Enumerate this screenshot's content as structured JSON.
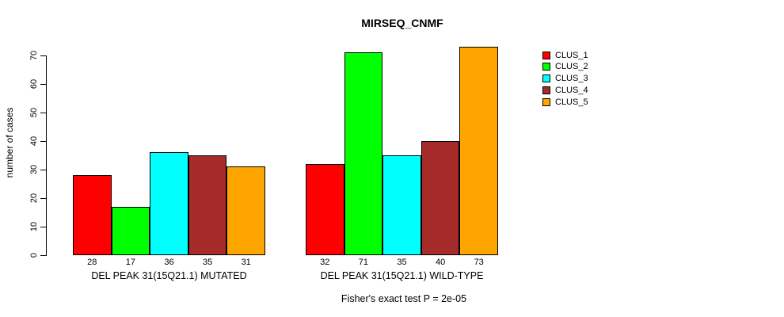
{
  "chart_data": {
    "type": "bar",
    "title": "MIRSEQ_CNMF",
    "ylabel": "number of cases",
    "xlabel": "",
    "ylim": [
      0,
      70
    ],
    "yticks": [
      0,
      10,
      20,
      30,
      40,
      50,
      60,
      70
    ],
    "grid": false,
    "legend_position": "right",
    "bar_value_labels_shown": true,
    "categories": [
      "DEL PEAK 31(15Q21.1) MUTATED",
      "DEL PEAK 31(15Q21.1) WILD-TYPE"
    ],
    "series": [
      {
        "name": "CLUS_1",
        "color": "#ff0000",
        "values": [
          28,
          32
        ]
      },
      {
        "name": "CLUS_2",
        "color": "#00ff00",
        "values": [
          17,
          71
        ]
      },
      {
        "name": "CLUS_3",
        "color": "#00ffff",
        "values": [
          36,
          35
        ]
      },
      {
        "name": "CLUS_4",
        "color": "#a52a2a",
        "values": [
          35,
          40
        ]
      },
      {
        "name": "CLUS_5",
        "color": "#ffa500",
        "values": [
          31,
          73
        ]
      }
    ],
    "annotation": "Fisher's exact test P = 2e-05",
    "colors": {
      "background": "#ffffff",
      "axis": "#000000",
      "text": "#000000",
      "bar_border": "#000000"
    }
  }
}
